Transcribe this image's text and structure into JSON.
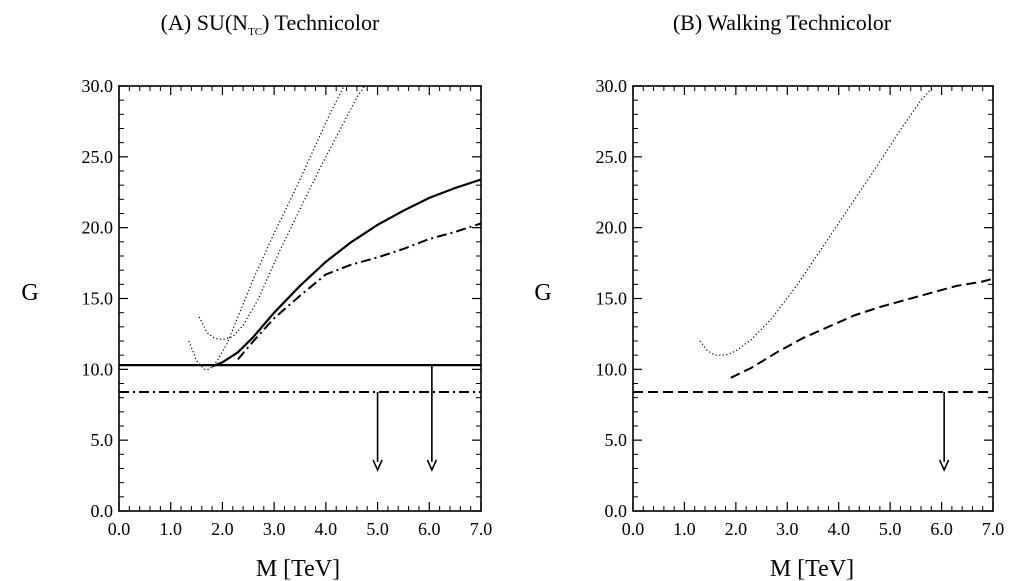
{
  "chart_data": [
    {
      "type": "line",
      "title": "(A) SU(N_TC) Technicolor",
      "title_parts": {
        "pre": "(A) SU(N",
        "sub": "TC",
        "post": ") Technicolor"
      },
      "xlabel": "M [TeV]",
      "ylabel": "G",
      "xlim": [
        0,
        7
      ],
      "ylim": [
        0,
        30
      ],
      "xticks": [
        "0.0",
        "1.0",
        "2.0",
        "3.0",
        "4.0",
        "5.0",
        "6.0",
        "7.0"
      ],
      "yticks": [
        "0.0",
        "5.0",
        "10.0",
        "15.0",
        "20.0",
        "25.0",
        "30.0"
      ],
      "grid": false,
      "legend": "none",
      "series": [
        {
          "style": "dotted",
          "x": [
            1.35,
            1.5,
            1.65,
            1.75,
            1.9,
            2.1,
            2.3,
            2.6,
            3.0,
            3.4,
            3.8,
            4.1,
            4.35
          ],
          "y": [
            12.0,
            10.6,
            10.0,
            10.0,
            10.6,
            11.9,
            13.7,
            16.4,
            19.6,
            22.6,
            25.8,
            28.2,
            30.0
          ]
        },
        {
          "style": "dotted",
          "x": [
            1.55,
            1.7,
            1.85,
            2.0,
            2.2,
            2.4,
            2.7,
            3.1,
            3.5,
            3.9,
            4.3,
            4.6,
            4.75
          ],
          "y": [
            13.7,
            12.6,
            12.2,
            12.1,
            12.3,
            13.1,
            15.0,
            18.3,
            21.3,
            24.3,
            27.1,
            29.2,
            30.0
          ]
        },
        {
          "style": "solid",
          "x": [
            1.8,
            2.0,
            2.3,
            2.6,
            3.0,
            3.5,
            4.0,
            4.5,
            5.0,
            5.5,
            6.0,
            6.5,
            7.0
          ],
          "y": [
            10.2,
            10.5,
            11.2,
            12.3,
            14.0,
            15.9,
            17.6,
            19.0,
            20.2,
            21.2,
            22.1,
            22.8,
            23.4
          ]
        },
        {
          "style": "dashdot",
          "x": [
            2.3,
            2.6,
            3.0,
            3.5,
            4.0,
            4.5,
            5.0,
            5.5,
            6.0,
            6.5,
            7.0
          ],
          "y": [
            10.7,
            12.0,
            13.6,
            15.2,
            16.7,
            17.4,
            17.9,
            18.5,
            19.2,
            19.7,
            20.3
          ]
        },
        {
          "style": "solid",
          "x": [
            0,
            7
          ],
          "y": [
            10.3,
            10.3
          ]
        },
        {
          "style": "dashdot",
          "x": [
            0,
            7
          ],
          "y": [
            8.4,
            8.4
          ]
        }
      ],
      "arrows": [
        {
          "x": 5.0,
          "from": 8.4,
          "to": 2.9
        },
        {
          "x": 6.05,
          "from": 10.3,
          "to": 2.9
        }
      ]
    },
    {
      "type": "line",
      "title": "(B) Walking Technicolor",
      "xlabel": "M [TeV]",
      "ylabel": "G",
      "xlim": [
        0,
        7
      ],
      "ylim": [
        0,
        30
      ],
      "xticks": [
        "0.0",
        "1.0",
        "2.0",
        "3.0",
        "4.0",
        "5.0",
        "6.0",
        "7.0"
      ],
      "yticks": [
        "0.0",
        "5.0",
        "10.0",
        "15.0",
        "20.0",
        "25.0",
        "30.0"
      ],
      "grid": false,
      "legend": "none",
      "series": [
        {
          "style": "dotted",
          "x": [
            1.3,
            1.45,
            1.6,
            1.8,
            2.0,
            2.3,
            2.7,
            3.2,
            3.7,
            4.2,
            4.7,
            5.2,
            5.6,
            5.85
          ],
          "y": [
            12.0,
            11.3,
            11.0,
            11.0,
            11.3,
            12.1,
            13.6,
            16.0,
            18.7,
            21.4,
            24.1,
            26.9,
            29.0,
            30.0
          ]
        },
        {
          "style": "dashed",
          "x": [
            1.9,
            2.3,
            2.8,
            3.3,
            3.8,
            4.3,
            4.8,
            5.3,
            5.8,
            6.3,
            6.8,
            7.0
          ],
          "y": [
            9.4,
            10.1,
            11.2,
            12.2,
            13.0,
            13.8,
            14.4,
            14.9,
            15.4,
            15.9,
            16.2,
            16.4
          ]
        },
        {
          "style": "dashed",
          "x": [
            0,
            7
          ],
          "y": [
            8.4,
            8.4
          ]
        }
      ],
      "arrows": [
        {
          "x": 6.05,
          "from": 8.4,
          "to": 2.9
        }
      ]
    }
  ]
}
